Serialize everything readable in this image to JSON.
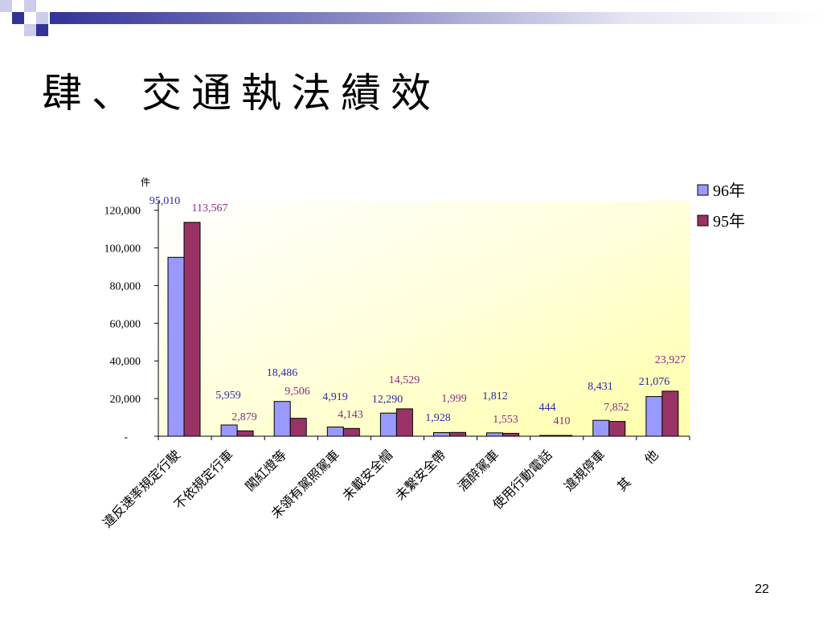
{
  "slide": {
    "title": "肆、交通執法績效",
    "page_number": "22"
  },
  "colors": {
    "decoration_dark": "#333399",
    "decoration_light": "#ccccec",
    "plot_background_top": "#ffffff",
    "plot_background_bottom": "#ffffa8"
  },
  "chart_data": {
    "type": "bar",
    "title": "",
    "xlabel": "",
    "ylabel": "件",
    "categories": [
      "違反速率規定行駛",
      "不依規定行車",
      "闖紅燈等",
      "未領有駕照駕車",
      "未載安全帽",
      "未繫安全帶",
      "酒醉駕車",
      "使用行動電話",
      "違規停車",
      "其　　他"
    ],
    "series": [
      {
        "name": "96年",
        "color": "#9999ff",
        "label_color": "#2b2bb0",
        "values": [
          95010,
          5959,
          18486,
          4919,
          12290,
          1928,
          1812,
          444,
          8431,
          21076
        ],
        "labels": [
          "95,010",
          "5,959",
          "18,486",
          "4,919",
          "12,290",
          "1,928",
          "1,812",
          "444",
          "8,431",
          "21,076"
        ]
      },
      {
        "name": "95年",
        "color": "#993366",
        "label_color": "#8b2d8b",
        "values": [
          113567,
          2879,
          9506,
          4143,
          14529,
          1999,
          1553,
          410,
          7852,
          23927
        ],
        "labels": [
          "113,567",
          "2,879",
          "9,506",
          "4,143",
          "14,529",
          "1,999",
          "1,553",
          "410",
          "7,852",
          "23,927"
        ]
      }
    ],
    "ylim": [
      0,
      125000
    ],
    "yticks": [
      0,
      20000,
      40000,
      60000,
      80000,
      100000,
      120000
    ],
    "ytick_labels": [
      "-",
      "20,000",
      "40,000",
      "60,000",
      "80,000",
      "100,000",
      "120,000"
    ],
    "grid": false,
    "legend": "top-right",
    "data_labels": true
  }
}
